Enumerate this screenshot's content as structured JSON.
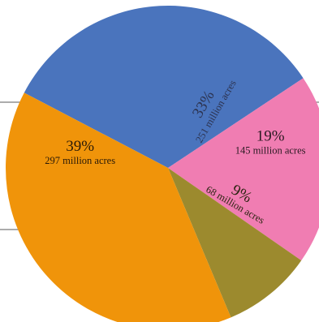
{
  "chart_data": {
    "type": "pie",
    "title": "",
    "unit": "million acres",
    "slices": [
      {
        "percent_label": "33%",
        "acres_label": "251 million acres",
        "percent": 33,
        "acres": 251,
        "color": "#4A74BD"
      },
      {
        "percent_label": "19%",
        "acres_label": "145 million acres",
        "percent": 19,
        "acres": 145,
        "color": "#F07DB2"
      },
      {
        "percent_label": "9%",
        "acres_label": "68 million acres",
        "percent": 9,
        "acres": 68,
        "color": "#9C8A2E"
      },
      {
        "percent_label": "39%",
        "acres_label": "297 million acres",
        "percent": 39,
        "acres": 297,
        "color": "#F0940A"
      }
    ],
    "grid": false,
    "legend": "none"
  }
}
